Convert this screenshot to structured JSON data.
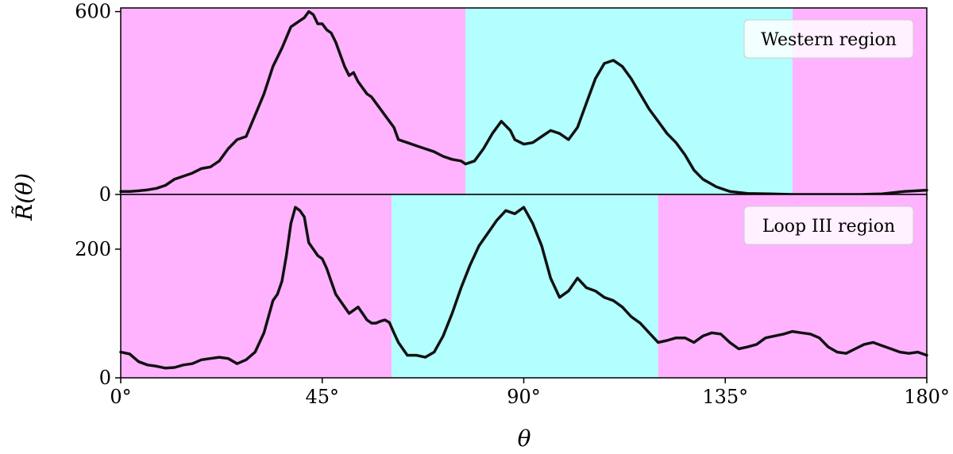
{
  "figure": {
    "xlabel": "θ",
    "ylabel": "R̃(θ)"
  },
  "chart_data": [
    {
      "type": "line",
      "label": "Western region",
      "xlim": [
        0,
        180
      ],
      "ylim": [
        0,
        612
      ],
      "x_ticks": [
        0,
        45,
        90,
        135,
        180
      ],
      "x_tick_labels": [
        "0°",
        "45°",
        "90°",
        "135°",
        "180°"
      ],
      "y_ticks": [
        0,
        600
      ],
      "y_tick_labels": [
        "0",
        "600"
      ],
      "shaded_regions": [
        {
          "x0": 0,
          "x1": 77,
          "color": "#ffb3ff"
        },
        {
          "x0": 77,
          "x1": 150,
          "color": "#b3ffff"
        },
        {
          "x0": 150,
          "x1": 180,
          "color": "#ffb3ff"
        }
      ],
      "line_color": "#111111",
      "x": [
        0,
        2,
        4,
        6,
        8,
        10,
        12,
        14,
        16,
        18,
        20,
        22,
        24,
        26,
        28,
        30,
        32,
        34,
        36,
        38,
        39,
        40,
        41,
        42,
        43,
        44,
        45,
        46,
        47,
        48,
        49,
        50,
        51,
        52,
        53,
        54,
        55,
        56,
        57,
        58,
        59,
        60,
        61,
        62,
        64,
        66,
        68,
        70,
        72,
        74,
        76,
        77,
        79,
        81,
        83,
        85,
        87,
        88,
        90,
        92,
        94,
        96,
        98,
        100,
        102,
        104,
        106,
        108,
        110,
        112,
        114,
        116,
        118,
        120,
        122,
        124,
        126,
        128,
        130,
        133,
        136,
        140,
        145,
        150,
        155,
        160,
        165,
        170,
        175,
        180
      ],
      "y": [
        10,
        10,
        12,
        15,
        20,
        30,
        50,
        60,
        70,
        85,
        90,
        110,
        150,
        180,
        190,
        260,
        330,
        420,
        480,
        550,
        560,
        570,
        580,
        600,
        590,
        560,
        560,
        540,
        530,
        500,
        460,
        420,
        390,
        400,
        370,
        350,
        330,
        320,
        300,
        280,
        260,
        240,
        220,
        180,
        170,
        160,
        150,
        140,
        125,
        115,
        110,
        100,
        110,
        150,
        200,
        240,
        210,
        180,
        165,
        170,
        190,
        210,
        200,
        180,
        220,
        300,
        380,
        430,
        440,
        420,
        380,
        330,
        280,
        240,
        200,
        170,
        130,
        80,
        50,
        25,
        10,
        3,
        2,
        0,
        0,
        0,
        0,
        2,
        10,
        14
      ]
    },
    {
      "type": "line",
      "label": "Loop III region",
      "xlim": [
        0,
        180
      ],
      "ylim": [
        0,
        285
      ],
      "x_ticks": [
        0,
        45,
        90,
        135,
        180
      ],
      "x_tick_labels": [
        "0°",
        "45°",
        "90°",
        "135°",
        "180°"
      ],
      "y_ticks": [
        0,
        200
      ],
      "y_tick_labels": [
        "0",
        "200"
      ],
      "shaded_regions": [
        {
          "x0": 0,
          "x1": 60.5,
          "color": "#ffb3ff"
        },
        {
          "x0": 60.5,
          "x1": 120,
          "color": "#b3ffff"
        },
        {
          "x0": 120,
          "x1": 180,
          "color": "#ffb3ff"
        }
      ],
      "line_color": "#111111",
      "x": [
        0,
        2,
        4,
        6,
        8,
        10,
        12,
        14,
        16,
        18,
        20,
        22,
        24,
        26,
        28,
        30,
        32,
        34,
        35,
        36,
        37,
        38,
        39,
        40,
        41,
        42,
        43,
        44,
        45,
        46,
        47,
        48,
        49,
        50,
        51,
        52,
        53,
        54,
        55,
        56,
        57,
        58,
        59,
        60,
        61,
        62,
        64,
        66,
        68,
        70,
        72,
        74,
        76,
        78,
        80,
        82,
        84,
        86,
        88,
        90,
        92,
        94,
        96,
        98,
        100,
        102,
        104,
        106,
        108,
        110,
        112,
        114,
        116,
        118,
        120,
        122,
        124,
        126,
        128,
        130,
        132,
        134,
        136,
        138,
        140,
        142,
        144,
        146,
        148,
        150,
        152,
        154,
        156,
        158,
        160,
        162,
        164,
        166,
        168,
        170,
        172,
        174,
        176,
        178,
        180
      ],
      "y": [
        40,
        37,
        25,
        20,
        18,
        15,
        16,
        20,
        22,
        28,
        30,
        32,
        30,
        22,
        28,
        40,
        70,
        120,
        130,
        150,
        190,
        240,
        265,
        260,
        250,
        210,
        200,
        190,
        185,
        170,
        150,
        130,
        120,
        110,
        100,
        105,
        110,
        100,
        90,
        85,
        85,
        88,
        90,
        86,
        70,
        55,
        35,
        35,
        32,
        40,
        65,
        100,
        140,
        175,
        205,
        225,
        245,
        260,
        255,
        265,
        240,
        205,
        155,
        125,
        135,
        155,
        140,
        135,
        125,
        120,
        110,
        95,
        85,
        70,
        55,
        58,
        62,
        62,
        55,
        65,
        70,
        68,
        55,
        45,
        48,
        52,
        62,
        65,
        68,
        72,
        70,
        68,
        62,
        48,
        40,
        38,
        45,
        52,
        55,
        50,
        45,
        40,
        38,
        40,
        35
      ]
    }
  ]
}
